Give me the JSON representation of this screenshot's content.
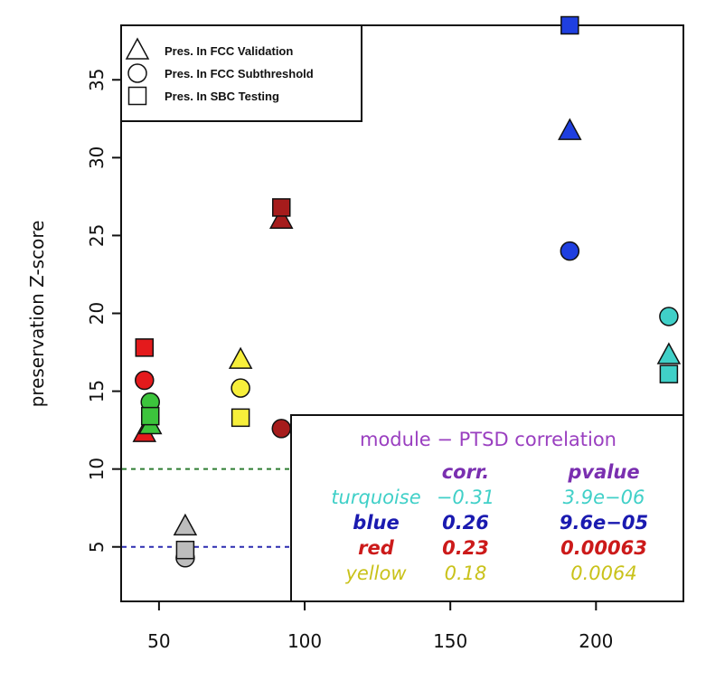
{
  "chart_data": {
    "type": "scatter",
    "title": "",
    "xlabel": "",
    "ylabel": "preservation Z-score",
    "xlim": [
      37,
      230
    ],
    "ylim": [
      1.5,
      38.5
    ],
    "x_ticks": [
      "50",
      "100",
      "150",
      "200"
    ],
    "y_ticks": [
      "5",
      "10",
      "15",
      "20",
      "25",
      "30",
      "35"
    ],
    "reference_lines": [
      {
        "y": 10,
        "color": "#2e7d32",
        "style": "dashed"
      },
      {
        "y": 5,
        "color": "#2c2cb0",
        "style": "dashed"
      }
    ],
    "legend": {
      "placement": "top-left",
      "entries": [
        {
          "shape": "triangle",
          "label": "Pres. In FCC Validation"
        },
        {
          "shape": "circle",
          "label": "Pres. In FCC Subthreshold"
        },
        {
          "shape": "square",
          "label": "Pres. In SBC Testing"
        }
      ]
    },
    "series": [
      {
        "name": "Pres. In FCC Validation",
        "shape": "triangle",
        "points": [
          {
            "x": 45,
            "y": 12.3,
            "color": "#e41a1c"
          },
          {
            "x": 47,
            "y": 12.8,
            "color": "#3cc43c"
          },
          {
            "x": 59,
            "y": 6.3,
            "color": "#bdbdbd"
          },
          {
            "x": 78,
            "y": 17.0,
            "color": "#f7ef3b"
          },
          {
            "x": 92,
            "y": 26.0,
            "color": "#a61c1c"
          },
          {
            "x": 191,
            "y": 31.7,
            "color": "#1f3fe0"
          },
          {
            "x": 225,
            "y": 17.3,
            "color": "#40d0c8"
          }
        ]
      },
      {
        "name": "Pres. In FCC Subthreshold",
        "shape": "circle",
        "points": [
          {
            "x": 45,
            "y": 15.7,
            "color": "#e41a1c"
          },
          {
            "x": 47,
            "y": 14.3,
            "color": "#3cc43c"
          },
          {
            "x": 59,
            "y": 4.3,
            "color": "#bdbdbd"
          },
          {
            "x": 78,
            "y": 15.2,
            "color": "#f7ef3b"
          },
          {
            "x": 92,
            "y": 12.6,
            "color": "#a61c1c"
          },
          {
            "x": 191,
            "y": 24.0,
            "color": "#1f3fe0"
          },
          {
            "x": 225,
            "y": 19.8,
            "color": "#40d0c8"
          }
        ]
      },
      {
        "name": "Pres. In SBC Testing",
        "shape": "square",
        "points": [
          {
            "x": 45,
            "y": 17.8,
            "color": "#e41a1c"
          },
          {
            "x": 47,
            "y": 13.4,
            "color": "#3cc43c"
          },
          {
            "x": 59,
            "y": 4.8,
            "color": "#bdbdbd"
          },
          {
            "x": 78,
            "y": 13.3,
            "color": "#f7ef3b"
          },
          {
            "x": 92,
            "y": 26.8,
            "color": "#a61c1c"
          },
          {
            "x": 191,
            "y": 38.5,
            "color": "#1f3fe0"
          },
          {
            "x": 225,
            "y": 16.1,
            "color": "#40d0c8"
          }
        ]
      }
    ],
    "correlation_table": {
      "title": "module − PTSD correlation",
      "title_color": "#9a3fc0",
      "header_color": "#7a2fb0",
      "headers": [
        "corr.",
        "pvalue"
      ],
      "rows": [
        {
          "module": "turquoise",
          "corr": "−0.31",
          "pvalue": "3.9e−06",
          "color": "#40d0c8"
        },
        {
          "module": "blue",
          "corr": "0.26",
          "pvalue": "9.6e−05",
          "color": "#1a1ab0"
        },
        {
          "module": "red",
          "corr": "0.23",
          "pvalue": "0.00063",
          "color": "#cc1a1a"
        },
        {
          "module": "yellow",
          "corr": "0.18",
          "pvalue": "0.0064",
          "color": "#c9c21a"
        }
      ]
    }
  }
}
